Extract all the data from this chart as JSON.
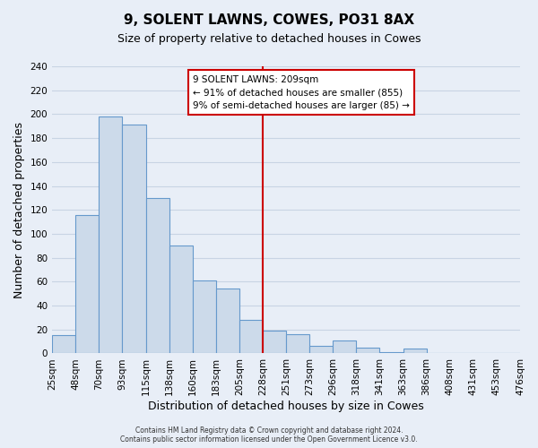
{
  "title": "9, SOLENT LAWNS, COWES, PO31 8AX",
  "subtitle": "Size of property relative to detached houses in Cowes",
  "xlabel": "Distribution of detached houses by size in Cowes",
  "ylabel": "Number of detached properties",
  "bar_values": [
    15,
    116,
    198,
    191,
    130,
    90,
    61,
    54,
    28,
    19,
    16,
    6,
    11,
    5,
    1,
    4,
    0,
    0,
    0,
    0
  ],
  "bin_labels": [
    "25sqm",
    "48sqm",
    "70sqm",
    "93sqm",
    "115sqm",
    "138sqm",
    "160sqm",
    "183sqm",
    "205sqm",
    "228sqm",
    "251sqm",
    "273sqm",
    "296sqm",
    "318sqm",
    "341sqm",
    "363sqm",
    "386sqm",
    "408sqm",
    "431sqm",
    "453sqm",
    "476sqm"
  ],
  "bar_color": "#ccdaea",
  "bar_edge_color": "#6699cc",
  "vline_x": 8.5,
  "vline_color": "#cc0000",
  "ylim": [
    0,
    240
  ],
  "yticks": [
    0,
    20,
    40,
    60,
    80,
    100,
    120,
    140,
    160,
    180,
    200,
    220,
    240
  ],
  "annotation_lines": [
    "9 SOLENT LAWNS: 209sqm",
    "← 91% of detached houses are smaller (855)",
    "9% of semi-detached houses are larger (85) →"
  ],
  "footer_lines": [
    "Contains HM Land Registry data © Crown copyright and database right 2024.",
    "Contains public sector information licensed under the Open Government Licence v3.0."
  ],
  "bg_color": "#e8eef7",
  "grid_color": "#c8d4e4",
  "title_fontsize": 11,
  "subtitle_fontsize": 9,
  "axis_label_fontsize": 9,
  "tick_fontsize": 7.5
}
